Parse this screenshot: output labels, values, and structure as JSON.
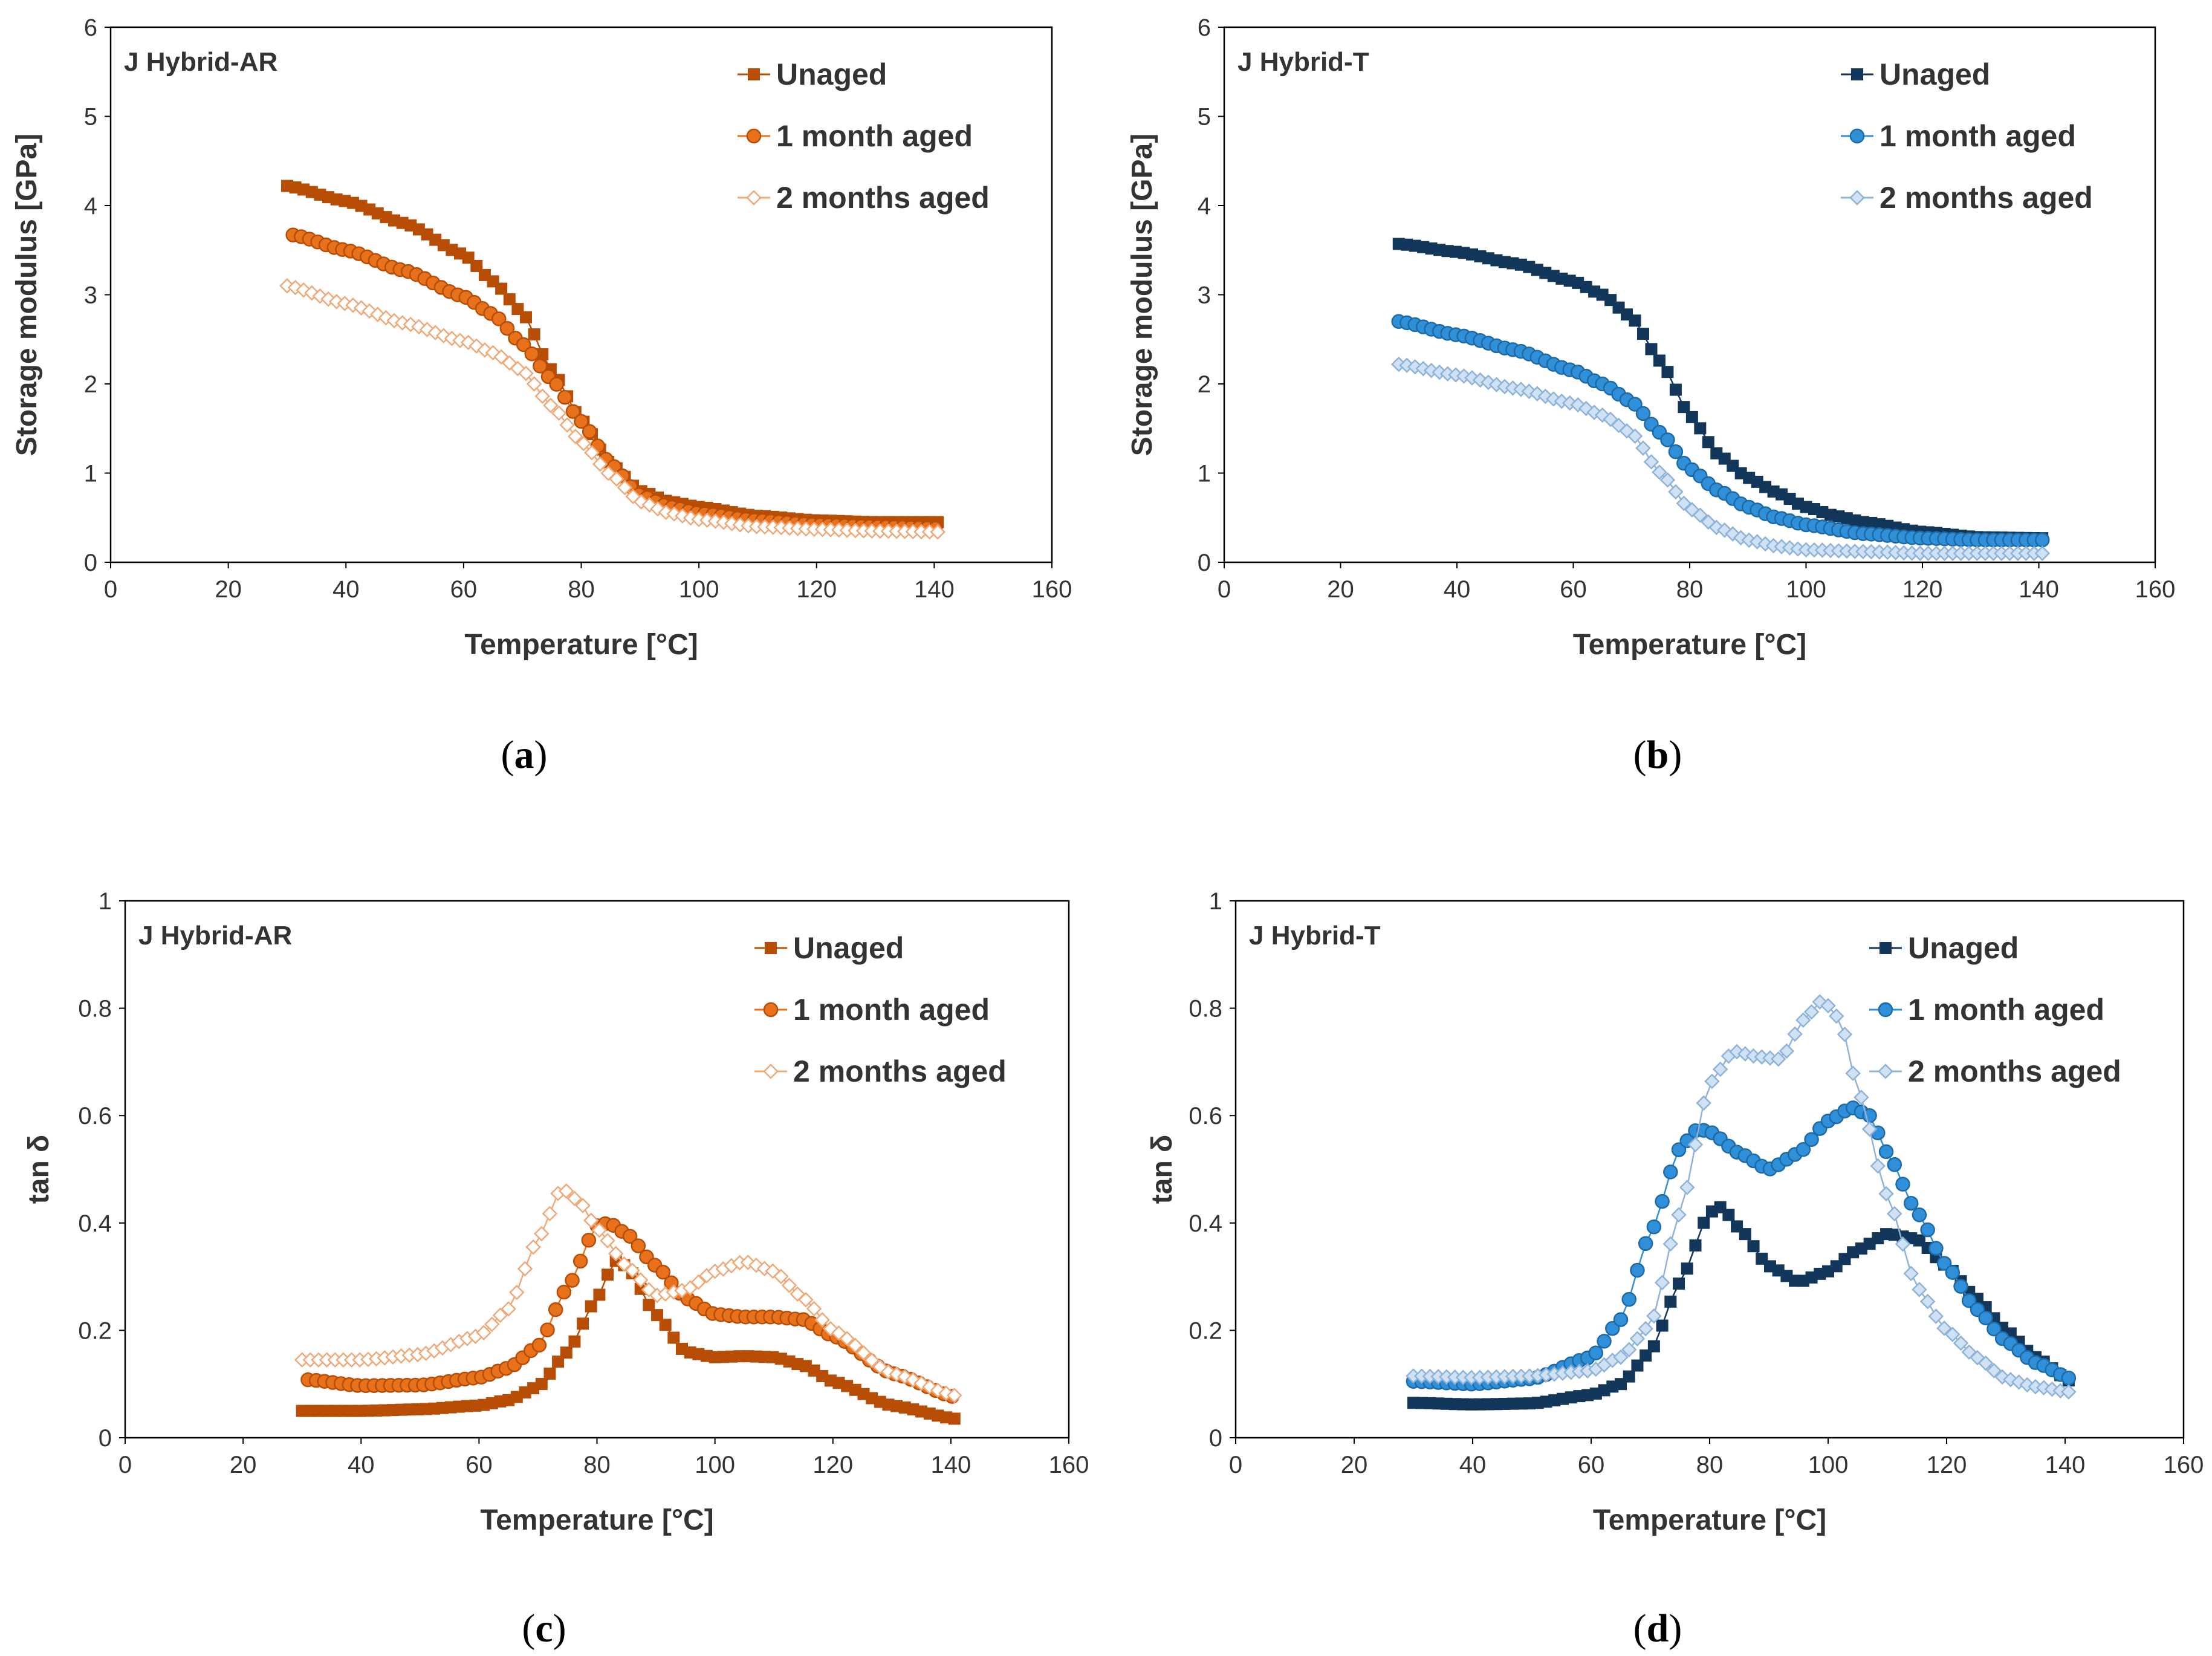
{
  "panels": [
    {
      "id": "a",
      "caption_letter": "a",
      "panel_label": "J Hybrid-AR",
      "ylabel": "Storage modulus [GPa]",
      "xlabel": "Temperature [°C]",
      "legend": [
        "Unaged",
        "1 month aged",
        "2 months aged"
      ]
    },
    {
      "id": "b",
      "caption_letter": "b",
      "panel_label": "J Hybrid-T",
      "ylabel": "Storage modulus [GPa]",
      "xlabel": "Temperature [°C]",
      "legend": [
        "Unaged",
        "1 month aged",
        "2 months aged"
      ]
    },
    {
      "id": "c",
      "caption_letter": "c",
      "panel_label": "J Hybrid-AR",
      "ylabel": "tan δ",
      "xlabel": "Temperature [°C]",
      "legend": [
        "Unaged",
        "1 month aged",
        "2 months aged"
      ]
    },
    {
      "id": "d",
      "caption_letter": "d",
      "panel_label": "J Hybrid-T",
      "ylabel": "tan δ",
      "xlabel": "Temperature [°C]",
      "legend": [
        "Unaged",
        "1 month aged",
        "2 months aged"
      ]
    }
  ],
  "colors": {
    "orange": "#e8711b",
    "orange_dark": "#b84d06",
    "orange_light": "#f0a877",
    "navy": "#13375a",
    "blue": "#2f8fd8",
    "blue_edge": "#1d6aa5",
    "blue_light": "#8fb3d8",
    "blue_light_fill": "#cfe2f3"
  },
  "chart_data": [
    {
      "panel": "a",
      "type": "line",
      "title": "J Hybrid-AR",
      "xlabel": "Temperature [°C]",
      "ylabel": "Storage modulus [GPa]",
      "xlim": [
        0,
        160
      ],
      "ylim": [
        0,
        6
      ],
      "xticks": [
        0,
        20,
        40,
        60,
        80,
        100,
        120,
        140,
        160
      ],
      "yticks": [
        0,
        1,
        2,
        3,
        4,
        5,
        6
      ],
      "legend_position": "top-right",
      "series": [
        {
          "name": "Unaged",
          "marker": "square",
          "color": "orange_dark",
          "points": [
            [
              30,
              4.22
            ],
            [
              40,
              4.05
            ],
            [
              50,
              3.8
            ],
            [
              60,
              3.45
            ],
            [
              65,
              3.15
            ],
            [
              70,
              2.8
            ],
            [
              75,
              2.15
            ],
            [
              80,
              1.6
            ],
            [
              85,
              1.1
            ],
            [
              90,
              0.8
            ],
            [
              95,
              0.68
            ],
            [
              100,
              0.62
            ],
            [
              110,
              0.52
            ],
            [
              120,
              0.47
            ],
            [
              130,
              0.45
            ],
            [
              141,
              0.45
            ]
          ]
        },
        {
          "name": "1 month aged",
          "marker": "circle",
          "color": "orange",
          "points": [
            [
              31,
              3.67
            ],
            [
              40,
              3.5
            ],
            [
              50,
              3.27
            ],
            [
              60,
              2.98
            ],
            [
              65,
              2.78
            ],
            [
              70,
              2.45
            ],
            [
              75,
              2.05
            ],
            [
              80,
              1.58
            ],
            [
              85,
              1.1
            ],
            [
              90,
              0.75
            ],
            [
              95,
              0.62
            ],
            [
              100,
              0.55
            ],
            [
              110,
              0.47
            ],
            [
              120,
              0.42
            ],
            [
              130,
              0.4
            ],
            [
              141,
              0.38
            ]
          ]
        },
        {
          "name": "2 months aged",
          "marker": "diamond",
          "color": "orange_light",
          "points": [
            [
              30,
              3.1
            ],
            [
              40,
              2.9
            ],
            [
              50,
              2.68
            ],
            [
              60,
              2.48
            ],
            [
              65,
              2.35
            ],
            [
              70,
              2.15
            ],
            [
              75,
              1.75
            ],
            [
              80,
              1.35
            ],
            [
              85,
              0.98
            ],
            [
              90,
              0.68
            ],
            [
              95,
              0.55
            ],
            [
              100,
              0.48
            ],
            [
              110,
              0.4
            ],
            [
              120,
              0.37
            ],
            [
              130,
              0.35
            ],
            [
              141,
              0.34
            ]
          ]
        }
      ]
    },
    {
      "panel": "b",
      "type": "line",
      "title": "J Hybrid-T",
      "xlabel": "Temperature [°C]",
      "ylabel": "Storage modulus [GPa]",
      "xlim": [
        0,
        160
      ],
      "ylim": [
        0,
        6
      ],
      "xticks": [
        0,
        20,
        40,
        60,
        80,
        100,
        120,
        140,
        160
      ],
      "yticks": [
        0,
        1,
        2,
        3,
        4,
        5,
        6
      ],
      "legend_position": "top-right",
      "series": [
        {
          "name": "Unaged",
          "marker": "square",
          "color": "navy",
          "points": [
            [
              30,
              3.57
            ],
            [
              40,
              3.48
            ],
            [
              50,
              3.35
            ],
            [
              60,
              3.15
            ],
            [
              65,
              3.0
            ],
            [
              70,
              2.75
            ],
            [
              75,
              2.25
            ],
            [
              80,
              1.65
            ],
            [
              85,
              1.2
            ],
            [
              90,
              0.95
            ],
            [
              95,
              0.78
            ],
            [
              100,
              0.62
            ],
            [
              105,
              0.52
            ],
            [
              110,
              0.45
            ],
            [
              120,
              0.34
            ],
            [
              130,
              0.28
            ],
            [
              141,
              0.27
            ]
          ]
        },
        {
          "name": "1 month aged",
          "marker": "circle",
          "color": "blue",
          "points": [
            [
              30,
              2.7
            ],
            [
              40,
              2.55
            ],
            [
              50,
              2.38
            ],
            [
              60,
              2.15
            ],
            [
              65,
              2.0
            ],
            [
              70,
              1.8
            ],
            [
              75,
              1.45
            ],
            [
              80,
              1.05
            ],
            [
              85,
              0.8
            ],
            [
              90,
              0.62
            ],
            [
              95,
              0.5
            ],
            [
              100,
              0.42
            ],
            [
              110,
              0.32
            ],
            [
              120,
              0.27
            ],
            [
              130,
              0.25
            ],
            [
              141,
              0.25
            ]
          ]
        },
        {
          "name": "2 months aged",
          "marker": "diamond",
          "color": "blue_light",
          "points": [
            [
              30,
              2.22
            ],
            [
              40,
              2.1
            ],
            [
              50,
              1.95
            ],
            [
              60,
              1.78
            ],
            [
              65,
              1.65
            ],
            [
              70,
              1.45
            ],
            [
              75,
              1.0
            ],
            [
              80,
              0.6
            ],
            [
              85,
              0.38
            ],
            [
              90,
              0.25
            ],
            [
              95,
              0.18
            ],
            [
              100,
              0.14
            ],
            [
              110,
              0.12
            ],
            [
              120,
              0.1
            ],
            [
              130,
              0.1
            ],
            [
              141,
              0.1
            ]
          ]
        }
      ]
    },
    {
      "panel": "c",
      "type": "line",
      "title": "J Hybrid-AR",
      "xlabel": "Temperature [°C]",
      "ylabel": "tan δ",
      "xlim": [
        0,
        160
      ],
      "ylim": [
        0,
        1
      ],
      "xticks": [
        0,
        20,
        40,
        60,
        80,
        100,
        120,
        140,
        160
      ],
      "yticks": [
        0,
        0.2,
        0.4,
        0.6,
        0.8,
        1
      ],
      "legend_position": "top-right",
      "series": [
        {
          "name": "Unaged",
          "marker": "square",
          "color": "orange_dark",
          "points": [
            [
              30,
              0.05
            ],
            [
              40,
              0.05
            ],
            [
              50,
              0.053
            ],
            [
              60,
              0.06
            ],
            [
              65,
              0.07
            ],
            [
              70,
              0.095
            ],
            [
              75,
              0.16
            ],
            [
              80,
              0.26
            ],
            [
              83,
              0.33
            ],
            [
              85,
              0.32
            ],
            [
              90,
              0.23
            ],
            [
              95,
              0.16
            ],
            [
              100,
              0.15
            ],
            [
              105,
              0.152
            ],
            [
              110,
              0.15
            ],
            [
              115,
              0.135
            ],
            [
              120,
              0.105
            ],
            [
              130,
              0.06
            ],
            [
              141,
              0.035
            ]
          ]
        },
        {
          "name": "1 month aged",
          "marker": "circle",
          "color": "orange",
          "points": [
            [
              31,
              0.108
            ],
            [
              40,
              0.097
            ],
            [
              50,
              0.098
            ],
            [
              60,
              0.112
            ],
            [
              65,
              0.13
            ],
            [
              70,
              0.17
            ],
            [
              75,
              0.28
            ],
            [
              80,
              0.395
            ],
            [
              82,
              0.4
            ],
            [
              85,
              0.38
            ],
            [
              90,
              0.32
            ],
            [
              95,
              0.26
            ],
            [
              100,
              0.23
            ],
            [
              105,
              0.225
            ],
            [
              110,
              0.225
            ],
            [
              115,
              0.22
            ],
            [
              120,
              0.19
            ],
            [
              130,
              0.12
            ],
            [
              141,
              0.075
            ]
          ]
        },
        {
          "name": "2 months aged",
          "marker": "diamond",
          "color": "orange_light",
          "points": [
            [
              30,
              0.145
            ],
            [
              40,
              0.145
            ],
            [
              50,
              0.155
            ],
            [
              60,
              0.19
            ],
            [
              65,
              0.24
            ],
            [
              70,
              0.37
            ],
            [
              74,
              0.465
            ],
            [
              77,
              0.44
            ],
            [
              80,
              0.39
            ],
            [
              85,
              0.32
            ],
            [
              90,
              0.265
            ],
            [
              95,
              0.275
            ],
            [
              100,
              0.31
            ],
            [
              105,
              0.328
            ],
            [
              110,
              0.31
            ],
            [
              115,
              0.26
            ],
            [
              120,
              0.2
            ],
            [
              130,
              0.12
            ],
            [
              141,
              0.078
            ]
          ]
        }
      ]
    },
    {
      "panel": "d",
      "type": "line",
      "title": "J Hybrid-T",
      "xlabel": "Temperature [°C]",
      "ylabel": "tan δ",
      "xlim": [
        0,
        160
      ],
      "ylim": [
        0,
        1
      ],
      "xticks": [
        0,
        20,
        40,
        60,
        80,
        100,
        120,
        140,
        160
      ],
      "yticks": [
        0,
        0.2,
        0.4,
        0.6,
        0.8,
        1
      ],
      "legend_position": "top-right",
      "series": [
        {
          "name": "Unaged",
          "marker": "square",
          "color": "navy",
          "points": [
            [
              30,
              0.065
            ],
            [
              40,
              0.062
            ],
            [
              50,
              0.064
            ],
            [
              60,
              0.08
            ],
            [
              65,
              0.1
            ],
            [
              70,
              0.16
            ],
            [
              75,
              0.29
            ],
            [
              80,
              0.42
            ],
            [
              82,
              0.43
            ],
            [
              85,
              0.39
            ],
            [
              90,
              0.32
            ],
            [
              95,
              0.29
            ],
            [
              100,
              0.31
            ],
            [
              105,
              0.35
            ],
            [
              110,
              0.38
            ],
            [
              115,
              0.37
            ],
            [
              120,
              0.32
            ],
            [
              125,
              0.26
            ],
            [
              130,
              0.2
            ],
            [
              135,
              0.15
            ],
            [
              141,
              0.105
            ]
          ]
        },
        {
          "name": "1 month aged",
          "marker": "circle",
          "color": "blue",
          "points": [
            [
              30,
              0.105
            ],
            [
              40,
              0.1
            ],
            [
              50,
              0.11
            ],
            [
              60,
              0.15
            ],
            [
              65,
              0.22
            ],
            [
              70,
              0.38
            ],
            [
              75,
              0.54
            ],
            [
              78,
              0.575
            ],
            [
              80,
              0.57
            ],
            [
              85,
              0.53
            ],
            [
              90,
              0.5
            ],
            [
              95,
              0.53
            ],
            [
              100,
              0.59
            ],
            [
              104,
              0.615
            ],
            [
              107,
              0.6
            ],
            [
              110,
              0.53
            ],
            [
              115,
              0.42
            ],
            [
              120,
              0.32
            ],
            [
              125,
              0.24
            ],
            [
              130,
              0.18
            ],
            [
              135,
              0.14
            ],
            [
              141,
              0.11
            ]
          ]
        },
        {
          "name": "2 months aged",
          "marker": "diamond",
          "color": "blue_light",
          "points": [
            [
              30,
              0.115
            ],
            [
              40,
              0.112
            ],
            [
              50,
              0.115
            ],
            [
              60,
              0.125
            ],
            [
              65,
              0.15
            ],
            [
              70,
              0.21
            ],
            [
              75,
              0.42
            ],
            [
              80,
              0.66
            ],
            [
              84,
              0.72
            ],
            [
              88,
              0.71
            ],
            [
              92,
              0.705
            ],
            [
              96,
              0.78
            ],
            [
              99,
              0.815
            ],
            [
              102,
              0.78
            ],
            [
              105,
              0.65
            ],
            [
              110,
              0.45
            ],
            [
              115,
              0.28
            ],
            [
              120,
              0.2
            ],
            [
              125,
              0.15
            ],
            [
              130,
              0.11
            ],
            [
              135,
              0.095
            ],
            [
              141,
              0.085
            ]
          ]
        }
      ]
    }
  ]
}
